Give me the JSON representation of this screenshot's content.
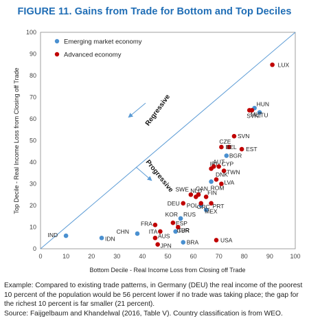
{
  "figure_title": "FIGURE  11. Gains from Trade for Bottom and Top Deciles",
  "caption": {
    "example": "Example: Compared to existing trade patterns, in Germany (DEU) the real income of the poorest 10 percent of the population would be 56 percent lower if no trade was taking place; the gap for the richest 10 percent is far smaller (21 percent).",
    "source": "Source: Faijgelbaum and Khandelwal (2016, Table V). Country classification is from WEO."
  },
  "colors": {
    "emerging": "#4a90d0",
    "advanced": "#c00000",
    "title": "#1f6db5",
    "diagonal": "#5b9bd5"
  },
  "chart_data": {
    "type": "scatter",
    "title": "",
    "xlabel": "Bottom Decile - Real Income Loss from Closing off Trade",
    "ylabel": "Top Decile - Real Income Loss from Closing off Trade",
    "xlim": [
      0,
      100
    ],
    "ylim": [
      0,
      100
    ],
    "xticks": [
      0,
      10,
      20,
      30,
      40,
      50,
      60,
      70,
      80,
      90,
      100
    ],
    "yticks": [
      0,
      10,
      20,
      30,
      40,
      50,
      60,
      70,
      80,
      90,
      100
    ],
    "grid": false,
    "legend_position": "top-left",
    "annotations": [
      "Regressive",
      "Progressive"
    ],
    "series": [
      {
        "name": "Emerging market economy",
        "color": "#4a90d0",
        "points": [
          {
            "label": "IND",
            "x": 10,
            "y": 6
          },
          {
            "label": "IDN",
            "x": 24,
            "y": 5
          },
          {
            "label": "CHN",
            "x": 38,
            "y": 7
          },
          {
            "label": "TUR",
            "x": 53,
            "y": 8
          },
          {
            "label": "KOR",
            "x": 55,
            "y": 14
          },
          {
            "label": "RUS",
            "x": 55,
            "y": 14
          },
          {
            "label": "BRA",
            "x": 56,
            "y": 3
          },
          {
            "label": "POL",
            "x": 63,
            "y": 20
          },
          {
            "label": "MEX",
            "x": 65,
            "y": 18
          },
          {
            "label": "ROM",
            "x": 67,
            "y": 31
          },
          {
            "label": "BGR",
            "x": 73,
            "y": 43
          },
          {
            "label": "HUN",
            "x": 84,
            "y": 65
          },
          {
            "label": "LTU",
            "x": 86,
            "y": 63
          }
        ]
      },
      {
        "name": "Advanced economy",
        "color": "#c00000",
        "points": [
          {
            "label": "FRA",
            "x": 45,
            "y": 11
          },
          {
            "label": "ITA",
            "x": 47,
            "y": 8
          },
          {
            "label": "AUS",
            "x": 45,
            "y": 5
          },
          {
            "label": "JPN",
            "x": 46,
            "y": 2
          },
          {
            "label": "ESP",
            "x": 52,
            "y": 12
          },
          {
            "label": "GBR",
            "x": 54,
            "y": 10
          },
          {
            "label": "USA",
            "x": 69,
            "y": 4
          },
          {
            "label": "DEU",
            "x": 56,
            "y": 21
          },
          {
            "label": "SWE",
            "x": 59,
            "y": 25
          },
          {
            "label": "NLD",
            "x": 61,
            "y": 24
          },
          {
            "label": "CAN",
            "x": 62,
            "y": 25
          },
          {
            "label": "FIN",
            "x": 65,
            "y": 24
          },
          {
            "label": "GRC",
            "x": 63,
            "y": 21
          },
          {
            "label": "PRT",
            "x": 67,
            "y": 21
          },
          {
            "label": "IRL",
            "x": 67,
            "y": 37
          },
          {
            "label": "AUT",
            "x": 68,
            "y": 38
          },
          {
            "label": "CYP",
            "x": 70,
            "y": 38
          },
          {
            "label": "TWN",
            "x": 72,
            "y": 36
          },
          {
            "label": "DNK",
            "x": 69,
            "y": 32
          },
          {
            "label": "LVA",
            "x": 71,
            "y": 30
          },
          {
            "label": "CZE",
            "x": 71,
            "y": 47
          },
          {
            "label": "BEL",
            "x": 74,
            "y": 47
          },
          {
            "label": "EST",
            "x": 79,
            "y": 46
          },
          {
            "label": "SVN",
            "x": 76,
            "y": 52
          },
          {
            "label": "SVK",
            "x": 82,
            "y": 64
          },
          {
            "label": "MLT",
            "x": 83,
            "y": 64
          },
          {
            "label": "LUX",
            "x": 91,
            "y": 85
          }
        ]
      }
    ]
  }
}
